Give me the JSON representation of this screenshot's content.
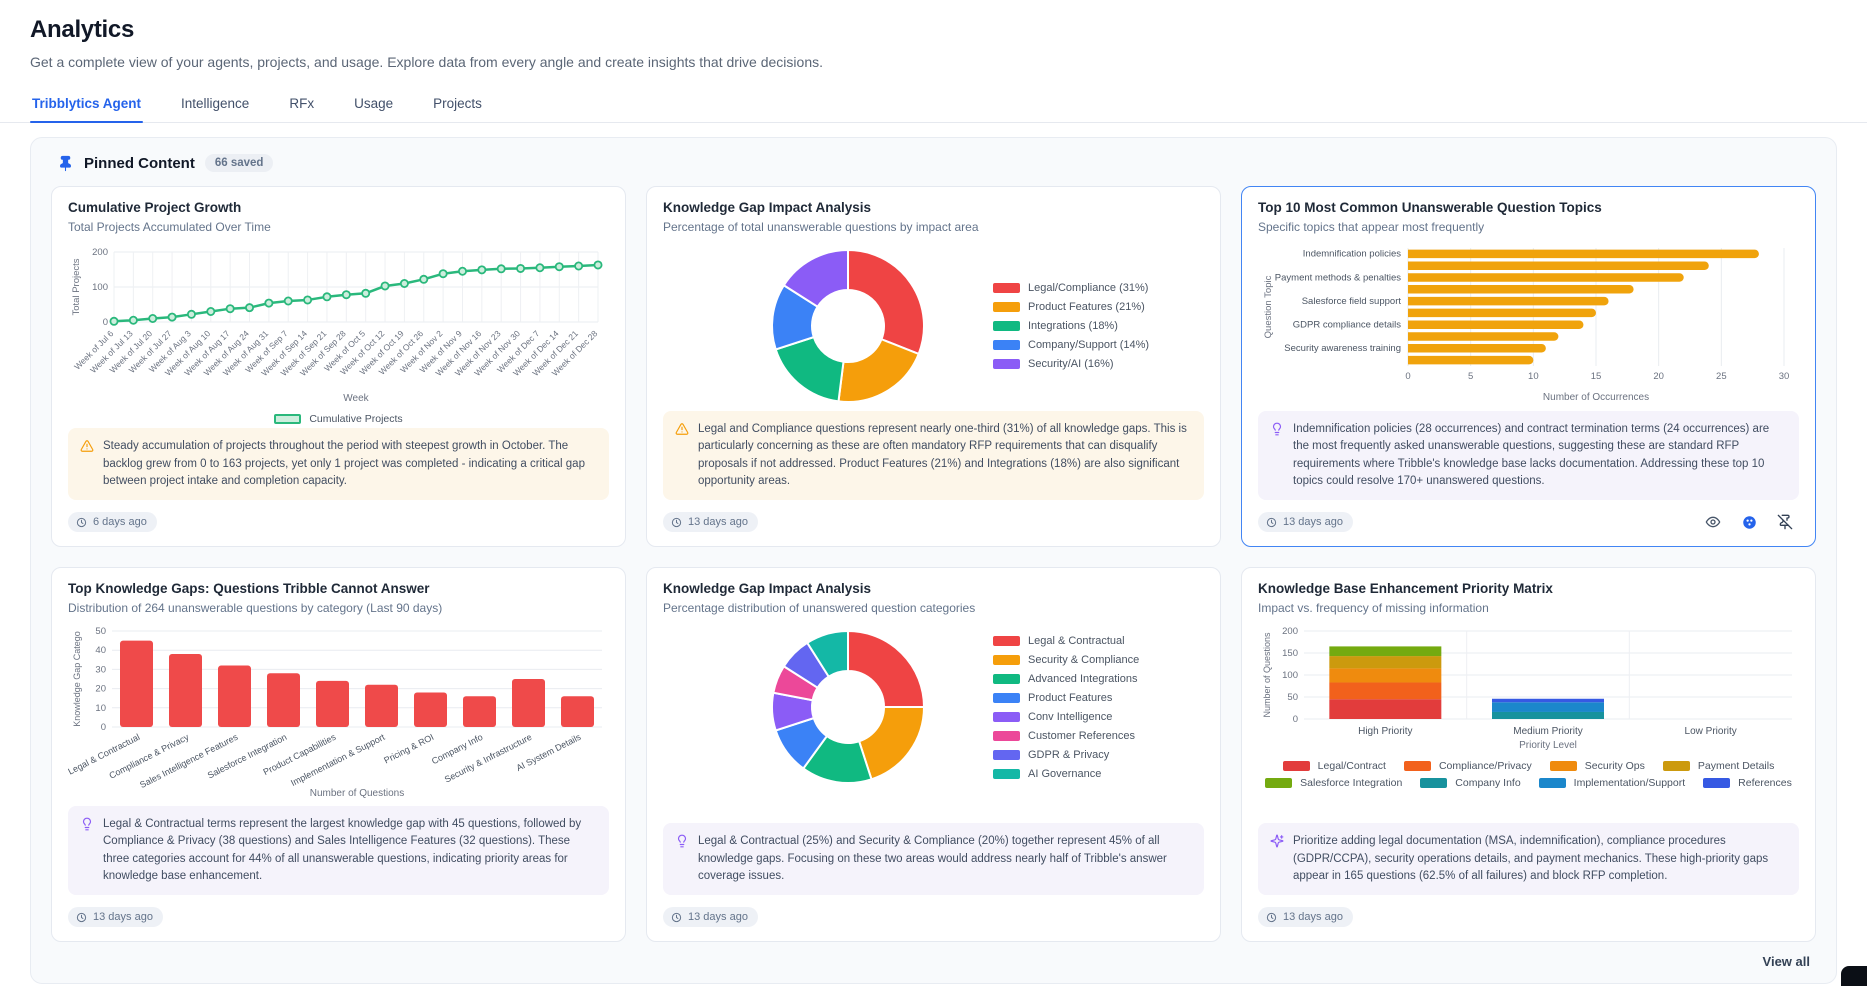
{
  "page": {
    "title": "Analytics",
    "subtitle": "Get a complete view of your agents, projects, and usage. Explore data from every angle and create insights that drive decisions."
  },
  "tabs": [
    "Tribblytics Agent",
    "Intelligence",
    "RFx",
    "Usage",
    "Projects"
  ],
  "pinned": {
    "title": "Pinned Content",
    "badge": "66 saved",
    "view_all": "View all"
  },
  "cards": [
    {
      "title": "Cumulative Project Growth",
      "subtitle": "Total Projects Accumulated Over Time",
      "insight": "Steady accumulation of projects throughout the period with steepest growth in October. The backlog grew from 0 to 163 projects, yet only 1 project was completed - indicating a critical gap between project intake and completion capacity.",
      "timestamp": "6 days ago"
    },
    {
      "title": "Knowledge Gap Impact Analysis",
      "subtitle": "Percentage of total unanswerable questions by impact area",
      "insight": "Legal and Compliance questions represent nearly one-third (31%) of all knowledge gaps. This is particularly concerning as these are often mandatory RFP requirements that can disqualify proposals if not addressed. Product Features (21%) and Integrations (18%) are also significant opportunity areas.",
      "timestamp": "13 days ago"
    },
    {
      "title": "Top 10 Most Common Unanswerable Question Topics",
      "subtitle": "Specific topics that appear most frequently",
      "insight": "Indemnification policies (28 occurrences) and contract termination terms (24 occurrences) are the most frequently asked unanswerable questions, suggesting these are standard RFP requirements where Tribble's knowledge base lacks documentation. Addressing these top 10 topics could resolve 170+ unanswered questions.",
      "timestamp": "13 days ago"
    },
    {
      "title": "Top Knowledge Gaps: Questions Tribble Cannot Answer",
      "subtitle": "Distribution of 264 unanswerable questions by category (Last 90 days)",
      "insight": "Legal & Contractual terms represent the largest knowledge gap with 45 questions, followed by Compliance & Privacy (38 questions) and Sales Intelligence Features (32 questions). These three categories account for 44% of all unanswerable questions, indicating priority areas for knowledge base enhancement.",
      "timestamp": "13 days ago"
    },
    {
      "title": "Knowledge Gap Impact Analysis",
      "subtitle": "Percentage distribution of unanswered question categories",
      "insight": "Legal & Contractual (25%) and Security & Compliance (20%) together represent 45% of all knowledge gaps. Focusing on these two areas would address nearly half of Tribble's answer coverage issues.",
      "timestamp": "13 days ago"
    },
    {
      "title": "Knowledge Base Enhancement Priority Matrix",
      "subtitle": "Impact vs. frequency of missing information",
      "insight": "Prioritize adding legal documentation (MSA, indemnification), compliance procedures (GDPR/CCPA), security operations details, and payment mechanics. These high-priority gaps appear in 165 questions (62.5% of all failures) and block RFP completion.",
      "timestamp": "13 days ago"
    }
  ],
  "chart_data": [
    {
      "type": "line",
      "title": "Cumulative Project Growth",
      "x": [
        "Week of Jul 6",
        "Week of Jul 13",
        "Week of Jul 20",
        "Week of Jul 27",
        "Week of Aug 3",
        "Week of Aug 10",
        "Week of Aug 17",
        "Week of Aug 24",
        "Week of Aug 31",
        "Week of Sep 7",
        "Week of Sep 14",
        "Week of Sep 21",
        "Week of Sep 28",
        "Week of Oct 5",
        "Week of Oct 12",
        "Week of Oct 19",
        "Week of Oct 26",
        "Week of Nov 2",
        "Week of Nov 9",
        "Week of Nov 16",
        "Week of Nov 23",
        "Week of Nov 30",
        "Week of Dec 7",
        "Week of Dec 14",
        "Week of Dec 21",
        "Week of Dec 28"
      ],
      "series": [
        {
          "name": "Cumulative Projects",
          "values": [
            2,
            5,
            10,
            14,
            22,
            30,
            38,
            41,
            54,
            60,
            63,
            72,
            78,
            82,
            103,
            110,
            122,
            138,
            145,
            149,
            152,
            153,
            155,
            158,
            160,
            163
          ]
        }
      ],
      "xlabel": "Week",
      "ylabel": "Total Projects",
      "ylim": [
        0,
        200
      ],
      "yticks": [
        0,
        100,
        200
      ],
      "color": "#2ab87c",
      "grid": true,
      "legend_position": "bottom"
    },
    {
      "type": "pie",
      "labels": [
        "Legal/Compliance (31%)",
        "Product Features (21%)",
        "Integrations (18%)",
        "Company/Support (14%)",
        "Security/AI (16%)"
      ],
      "values": [
        31,
        21,
        18,
        14,
        16
      ],
      "colors": [
        "#ef4444",
        "#f59e0b",
        "#10b981",
        "#3b82f6",
        "#8b5cf6"
      ],
      "donut": true,
      "legend_position": "right"
    },
    {
      "type": "bar",
      "orientation": "horizontal",
      "labels": [
        "Indemnification policies",
        "",
        "Payment methods & penalties",
        "",
        "Salesforce field support",
        "",
        "GDPR compliance details",
        "",
        "Security awareness training",
        ""
      ],
      "values": [
        28,
        24,
        22,
        18,
        16,
        15,
        14,
        12,
        11,
        10
      ],
      "xlabel": "Number of Occurrences",
      "ylabel": "Question Topic",
      "xlim": [
        0,
        30
      ],
      "xticks": [
        0,
        5,
        10,
        15,
        20,
        25,
        30
      ],
      "color": "#f0a30c",
      "grid": true
    },
    {
      "type": "bar",
      "orientation": "vertical",
      "categories": [
        "Legal & Contractual",
        "Compliance & Privacy",
        "Sales Intelligence Features",
        "Salesforce Integration",
        "Product Capabilities",
        "Implementation & Support",
        "Pricing & ROI",
        "Company Info",
        "Security & Infrastructure",
        "AI System Details"
      ],
      "values": [
        45,
        38,
        32,
        28,
        24,
        22,
        18,
        16,
        25,
        16
      ],
      "xlabel": "Number of Questions",
      "ylabel": "Knowledge Gap Catego",
      "ylim": [
        0,
        50
      ],
      "yticks": [
        0,
        10,
        20,
        30,
        40,
        50
      ],
      "color": "#ef4a4a",
      "grid": true
    },
    {
      "type": "pie",
      "labels": [
        "Legal & Contractual",
        "Security & Compliance",
        "Advanced Integrations",
        "Product Features",
        "Conv Intelligence",
        "Customer References",
        "GDPR & Privacy",
        "AI Governance"
      ],
      "values": [
        25,
        20,
        15,
        10,
        8,
        6,
        7,
        9
      ],
      "colors": [
        "#ef4444",
        "#f59e0b",
        "#10b981",
        "#3b82f6",
        "#8b5cf6",
        "#ec4899",
        "#6366f1",
        "#14b8a6"
      ],
      "donut": true,
      "legend_position": "right"
    },
    {
      "type": "stacked-bar",
      "categories": [
        "High Priority",
        "Medium Priority",
        "Low Priority"
      ],
      "series": [
        {
          "name": "Legal/Contract",
          "color": "#e23c3c",
          "values": [
            45,
            0,
            0
          ]
        },
        {
          "name": "Compliance/Privacy",
          "color": "#f2611c",
          "values": [
            38,
            0,
            0
          ]
        },
        {
          "name": "Security Ops",
          "color": "#ef8b0e",
          "values": [
            32,
            0,
            0
          ]
        },
        {
          "name": "Payment Details",
          "color": "#cc9a0e",
          "values": [
            28,
            0,
            0
          ]
        },
        {
          "name": "Salesforce Integration",
          "color": "#74aa10",
          "values": [
            22,
            0,
            0
          ]
        },
        {
          "name": "Company Info",
          "color": "#17929d",
          "values": [
            0,
            16,
            0
          ]
        },
        {
          "name": "Implementation/Support",
          "color": "#1b87cb",
          "values": [
            0,
            22,
            0
          ]
        },
        {
          "name": "References",
          "color": "#3659e3",
          "values": [
            0,
            8,
            0
          ]
        }
      ],
      "xlabel": "Priority Level",
      "ylabel": "Number of Questions",
      "ylim": [
        0,
        200
      ],
      "yticks": [
        0,
        50,
        100,
        150,
        200
      ],
      "grid": true,
      "legend_position": "bottom"
    }
  ]
}
